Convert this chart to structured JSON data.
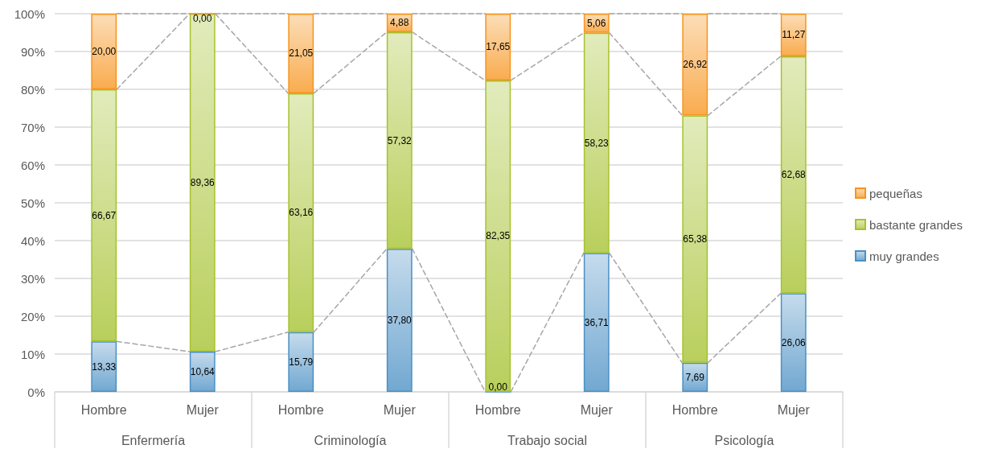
{
  "chart_data": {
    "type": "bar",
    "stacked": true,
    "categories": [
      "Hombre",
      "Mujer",
      "Hombre",
      "Mujer",
      "Hombre",
      "Mujer",
      "Hombre",
      "Mujer"
    ],
    "annotations": [
      "Enfermería",
      "Criminología",
      "Trabajo social",
      "Psicología"
    ],
    "series": [
      {
        "name": "muy grandes",
        "color": "#4a90c4",
        "values": [
          13.33,
          10.64,
          15.79,
          37.8,
          0,
          36.71,
          7.69,
          26.06
        ],
        "value_labels": [
          "13,33",
          "10,64",
          "15,79",
          "37,80",
          "0,00",
          "36,71",
          "7,69",
          "26,06"
        ]
      },
      {
        "name": "bastante grandes",
        "color": "#a5c22e",
        "values": [
          66.67,
          89.36,
          63.16,
          57.32,
          82.35,
          58.23,
          65.38,
          62.68
        ],
        "value_labels": [
          "66,67",
          "89,36",
          "63,16",
          "57,32",
          "82,35",
          "58,23",
          "65,38",
          "62,68"
        ]
      },
      {
        "name": "pequeñas",
        "color": "#f7941d",
        "values": [
          20.0,
          0,
          21.05,
          4.88,
          17.65,
          5.06,
          26.92,
          11.27
        ],
        "value_labels": [
          "20,00",
          "0,00",
          "21,05",
          "4,88",
          "17,65",
          "5,06",
          "26,92",
          "11,27"
        ]
      }
    ],
    "ylim": [
      0,
      100
    ],
    "yticks": [
      {
        "value": 0,
        "label": "0%"
      },
      {
        "value": 10,
        "label": "10%"
      },
      {
        "value": 20,
        "label": "20%"
      },
      {
        "value": 30,
        "label": "30%"
      },
      {
        "value": 40,
        "label": "40%"
      },
      {
        "value": 50,
        "label": "50%"
      },
      {
        "value": 60,
        "label": "60%"
      },
      {
        "value": 70,
        "label": "70%"
      },
      {
        "value": 80,
        "label": "80%"
      },
      {
        "value": 90,
        "label": "90%"
      },
      {
        "value": 100,
        "label": "100%"
      }
    ],
    "grid": "y",
    "legend": "right",
    "line_style": "dashed"
  }
}
